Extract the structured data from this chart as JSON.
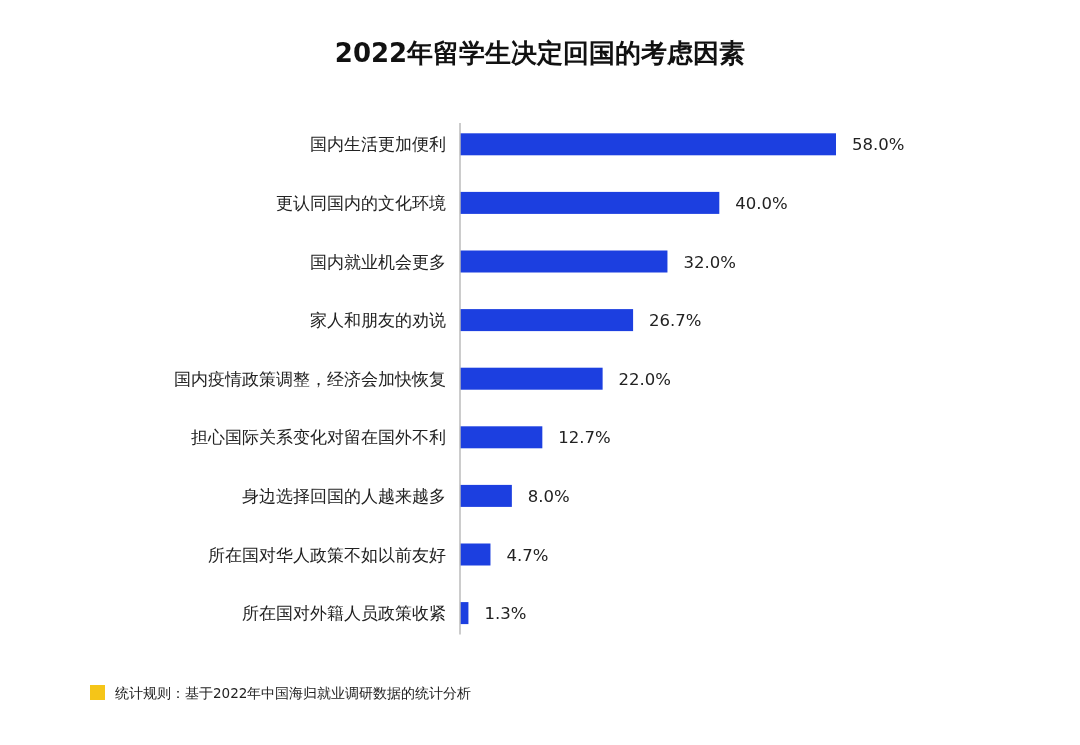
{
  "chart_data": {
    "type": "bar",
    "orientation": "horizontal",
    "title": "2022年留学生决定回国的考虑因素",
    "categories": [
      "国内生活更加便利",
      "更认同国内的文化环境",
      "国内就业机会更多",
      "家人和朋友的劝说",
      "国内疫情政策调整，经济会加快恢复",
      "担心国际关系变化对留在国外不利",
      "身边选择回国的人越来越多",
      "所在国对华人政策不如以前友好",
      "所在国对外籍人员政策收紧"
    ],
    "values": [
      58.0,
      40.0,
      32.0,
      26.7,
      22.0,
      12.7,
      8.0,
      4.7,
      1.3
    ],
    "value_labels": [
      "58.0%",
      "40.0%",
      "32.0%",
      "26.7%",
      "22.0%",
      "12.7%",
      "8.0%",
      "4.7%",
      "1.3%"
    ],
    "color": "#1c3fe0",
    "annotations": [
      "统计规则：基于2022年中国海归就业调研数据的统计分析"
    ]
  }
}
